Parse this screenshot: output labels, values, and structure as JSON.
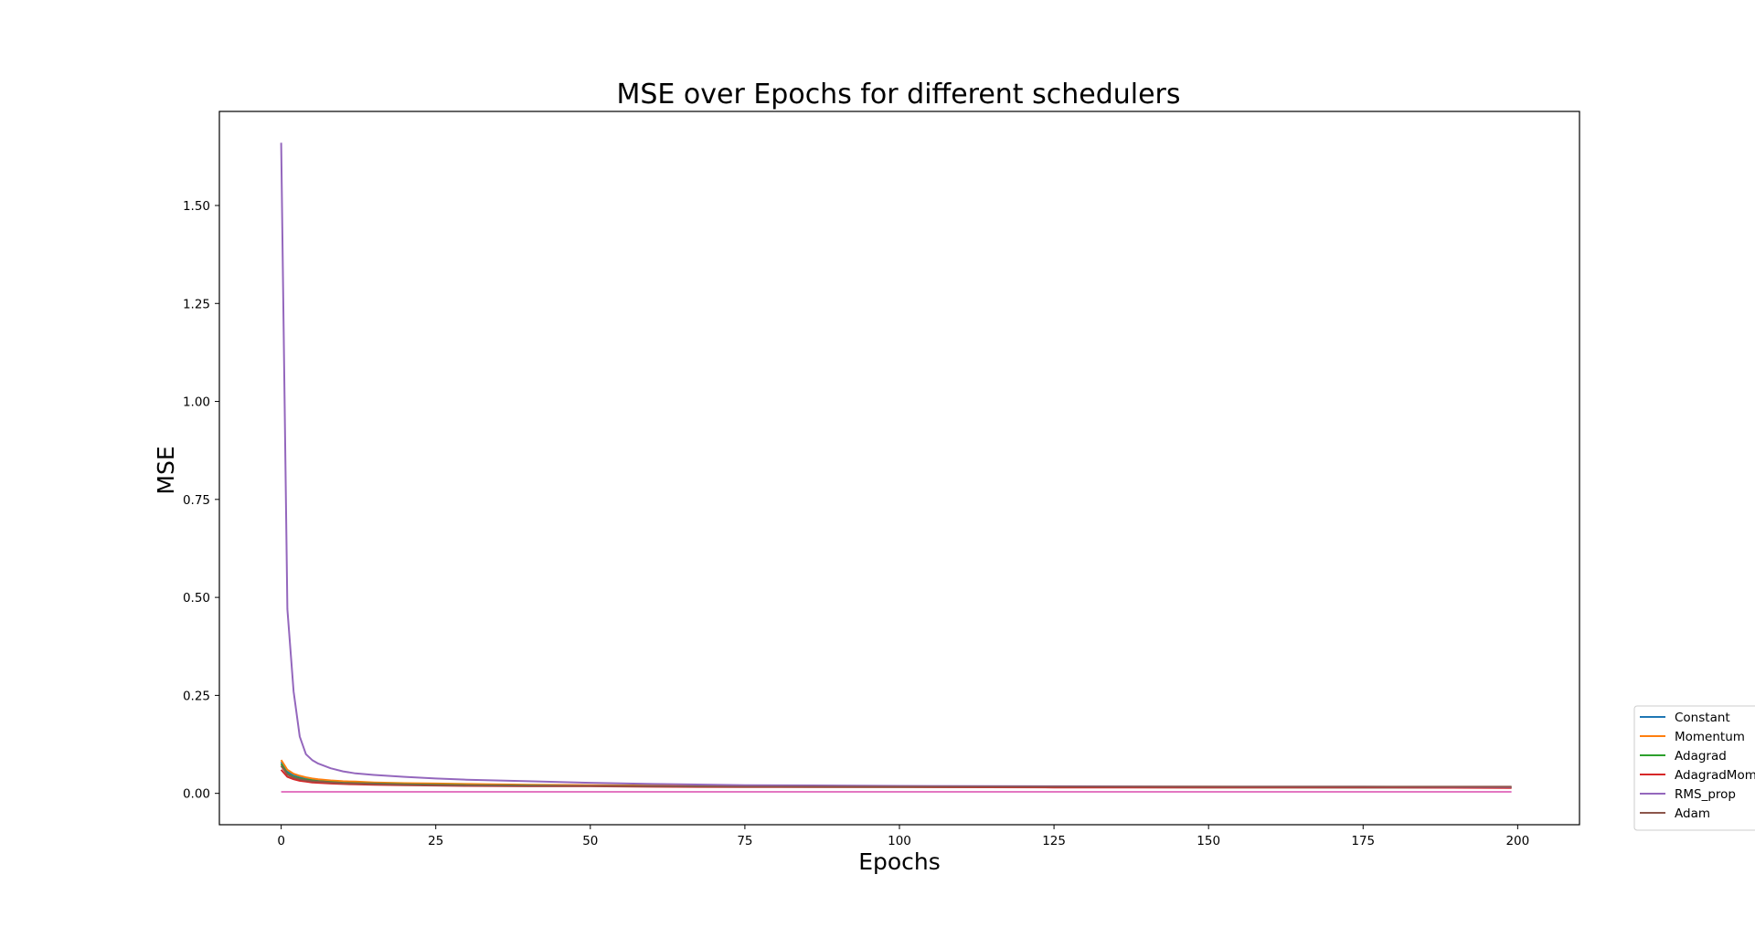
{
  "chart_data": {
    "type": "line",
    "title": "MSE over Epochs for different schedulers",
    "xlabel": "Epochs",
    "ylabel": "MSE",
    "xlim": [
      -10,
      210
    ],
    "ylim": [
      -0.08,
      1.74
    ],
    "xticks": [
      0,
      25,
      50,
      75,
      100,
      125,
      150,
      175,
      200
    ],
    "xtick_labels": [
      "0",
      "25",
      "50",
      "75",
      "100",
      "125",
      "150",
      "175",
      "200"
    ],
    "yticks": [
      0.0,
      0.25,
      0.5,
      0.75,
      1.0,
      1.25,
      1.5
    ],
    "ytick_labels": [
      "0.00",
      "0.25",
      "0.50",
      "0.75",
      "1.00",
      "1.25",
      "1.50"
    ],
    "grid": false,
    "legend_position": "outside-bottom-right",
    "x": [
      0,
      1,
      2,
      3,
      4,
      5,
      6,
      8,
      10,
      12,
      15,
      20,
      25,
      30,
      40,
      50,
      60,
      75,
      100,
      125,
      150,
      175,
      199
    ],
    "series": [
      {
        "name": "Constant",
        "color": "#1f77b4",
        "values": [
          0.08,
          0.055,
          0.047,
          0.042,
          0.039,
          0.036,
          0.034,
          0.031,
          0.029,
          0.028,
          0.026,
          0.024,
          0.023,
          0.022,
          0.021,
          0.02,
          0.019,
          0.018,
          0.017,
          0.016,
          0.016,
          0.015,
          0.015
        ]
      },
      {
        "name": "Momentum",
        "color": "#ff7f0e",
        "values": [
          0.085,
          0.06,
          0.05,
          0.045,
          0.041,
          0.038,
          0.036,
          0.033,
          0.031,
          0.03,
          0.028,
          0.026,
          0.025,
          0.024,
          0.022,
          0.021,
          0.02,
          0.019,
          0.018,
          0.017,
          0.017,
          0.016,
          0.016
        ]
      },
      {
        "name": "Adagrad",
        "color": "#2ca02c",
        "values": [
          0.075,
          0.05,
          0.042,
          0.038,
          0.035,
          0.033,
          0.031,
          0.029,
          0.027,
          0.026,
          0.025,
          0.023,
          0.022,
          0.021,
          0.02,
          0.019,
          0.018,
          0.017,
          0.016,
          0.016,
          0.015,
          0.015,
          0.015
        ]
      },
      {
        "name": "AdagradMom",
        "color": "#d62728",
        "values": [
          0.06,
          0.042,
          0.036,
          0.032,
          0.03,
          0.028,
          0.027,
          0.025,
          0.024,
          0.023,
          0.022,
          0.021,
          0.02,
          0.019,
          0.018,
          0.018,
          0.017,
          0.016,
          0.016,
          0.015,
          0.015,
          0.015,
          0.014
        ]
      },
      {
        "name": "RMS_prop",
        "color": "#9467bd",
        "values": [
          1.66,
          0.47,
          0.26,
          0.145,
          0.1,
          0.085,
          0.076,
          0.064,
          0.056,
          0.051,
          0.047,
          0.042,
          0.038,
          0.035,
          0.031,
          0.027,
          0.024,
          0.021,
          0.019,
          0.018,
          0.017,
          0.017,
          0.016
        ]
      },
      {
        "name": "Adam",
        "color": "#8c564b",
        "values": [
          0.07,
          0.048,
          0.04,
          0.036,
          0.033,
          0.031,
          0.03,
          0.028,
          0.026,
          0.025,
          0.024,
          0.022,
          0.021,
          0.02,
          0.019,
          0.019,
          0.018,
          0.017,
          0.017,
          0.017,
          0.017,
          0.017,
          0.017
        ]
      },
      {
        "color": "#e377c2",
        "values": [
          0.004,
          0.004,
          0.004,
          0.004,
          0.004,
          0.004,
          0.004,
          0.004,
          0.004,
          0.004,
          0.004,
          0.004,
          0.004,
          0.004,
          0.004,
          0.004,
          0.004,
          0.004,
          0.004,
          0.004,
          0.004,
          0.004,
          0.004
        ]
      }
    ]
  }
}
